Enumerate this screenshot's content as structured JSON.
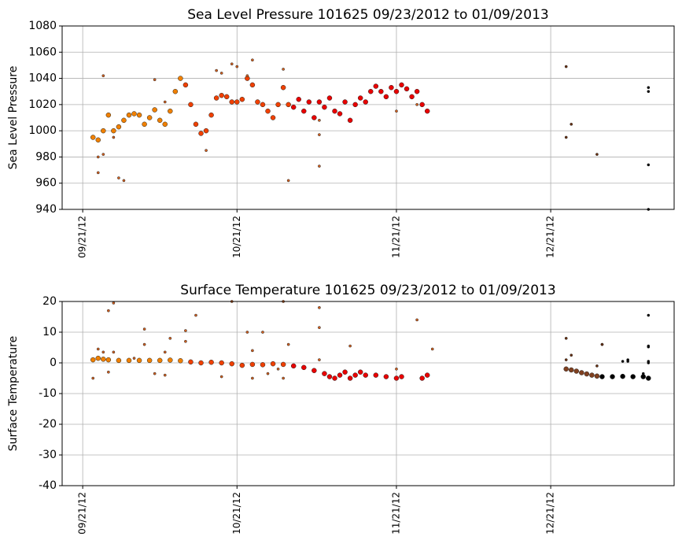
{
  "chart_data": [
    {
      "type": "scatter",
      "title": "Sea Level Pressure 101625  09/23/2012 to 01/09/2013",
      "y_label": "Sea Level Pressure",
      "xlim": [
        "2012-09-17",
        "2013-01-14"
      ],
      "ylim": [
        940,
        1080
      ],
      "xticks": [
        {
          "value": "2012-09-21",
          "label": "09/21/12"
        },
        {
          "value": "2012-10-21",
          "label": "10/21/12"
        },
        {
          "value": "2012-11-21",
          "label": "11/21/12"
        },
        {
          "value": "2012-12-21",
          "label": "12/21/12"
        }
      ],
      "yticks": [
        940,
        960,
        980,
        1000,
        1020,
        1040,
        1060,
        1080
      ],
      "grid": true,
      "series": [
        {
          "color": "#f08000",
          "marker_size": 3,
          "x": [
            "2012-09-23",
            "2012-09-24",
            "2012-09-25",
            "2012-09-26",
            "2012-09-27",
            "2012-09-28",
            "2012-09-29",
            "2012-09-30",
            "2012-10-01",
            "2012-10-02",
            "2012-10-03",
            "2012-10-04",
            "2012-10-05",
            "2012-10-06",
            "2012-10-07",
            "2012-10-08",
            "2012-10-09",
            "2012-10-10"
          ],
          "values": [
            995,
            993,
            1000,
            1012,
            1000,
            1003,
            1008,
            1012,
            1013,
            1012,
            1005,
            1010,
            1016,
            1008,
            1005,
            1015,
            1030,
            1040
          ]
        },
        {
          "color": "#f04000",
          "marker_size": 3,
          "x": [
            "2012-10-11",
            "2012-10-12",
            "2012-10-13",
            "2012-10-14",
            "2012-10-15",
            "2012-10-16",
            "2012-10-17",
            "2012-10-18",
            "2012-10-19",
            "2012-10-20",
            "2012-10-21",
            "2012-10-22",
            "2012-10-23",
            "2012-10-24",
            "2012-10-25",
            "2012-10-26",
            "2012-10-27",
            "2012-10-28",
            "2012-10-29",
            "2012-10-30",
            "2012-10-31"
          ],
          "values": [
            1035,
            1020,
            1005,
            998,
            1000,
            1012,
            1025,
            1027,
            1026,
            1022,
            1022,
            1024,
            1040,
            1035,
            1022,
            1020,
            1015,
            1010,
            1020,
            1033,
            1020
          ]
        },
        {
          "color": "#e80000",
          "marker_size": 3,
          "x": [
            "2012-11-01",
            "2012-11-02",
            "2012-11-03",
            "2012-11-04",
            "2012-11-05",
            "2012-11-06",
            "2012-11-07",
            "2012-11-08",
            "2012-11-09",
            "2012-11-10",
            "2012-11-11",
            "2012-11-12",
            "2012-11-13",
            "2012-11-14",
            "2012-11-15",
            "2012-11-16",
            "2012-11-17",
            "2012-11-18",
            "2012-11-19",
            "2012-11-20",
            "2012-11-21",
            "2012-11-22",
            "2012-11-23",
            "2012-11-24",
            "2012-11-25",
            "2012-11-26",
            "2012-11-27"
          ],
          "values": [
            1018,
            1024,
            1015,
            1022,
            1010,
            1022,
            1018,
            1025,
            1015,
            1013,
            1022,
            1008,
            1020,
            1025,
            1022,
            1030,
            1034,
            1030,
            1026,
            1033,
            1030,
            1035,
            1032,
            1026,
            1030,
            1020,
            1015
          ]
        },
        {
          "color": "#d06020",
          "marker_size": 1.6,
          "x": [
            "2012-09-24",
            "2012-09-24",
            "2012-09-25",
            "2012-09-25",
            "2012-09-27",
            "2012-09-28",
            "2012-09-29",
            "2012-10-05",
            "2012-10-07",
            "2012-10-15",
            "2012-10-17",
            "2012-10-18",
            "2012-10-20",
            "2012-10-21",
            "2012-10-23",
            "2012-10-24",
            "2012-10-30",
            "2012-10-31",
            "2012-11-06",
            "2012-11-06",
            "2012-11-06",
            "2012-11-21",
            "2012-11-25"
          ],
          "values": [
            968,
            980,
            982,
            1042,
            995,
            964,
            962,
            1039,
            1022,
            985,
            1046,
            1044,
            1051,
            1049,
            1042,
            1054,
            1047,
            962,
            997,
            1008,
            973,
            1015,
            1020
          ]
        },
        {
          "color": "#6a3010",
          "marker_size": 1.6,
          "x": [
            "2012-12-24",
            "2012-12-24",
            "2012-12-25",
            "2012-12-30"
          ],
          "values": [
            1049,
            995,
            1005,
            982
          ]
        },
        {
          "color": "#000000",
          "marker_size": 1.6,
          "x": [
            "2013-01-09",
            "2013-01-09",
            "2013-01-09",
            "2013-01-09"
          ],
          "values": [
            1033,
            1030,
            974,
            940
          ]
        }
      ]
    },
    {
      "type": "scatter",
      "title": "Surface Temperature 101625  09/23/2012 to 01/09/2013",
      "y_label": "Surface Temperature",
      "xlim": [
        "2012-09-17",
        "2013-01-14"
      ],
      "ylim": [
        -40,
        20
      ],
      "xticks": [
        {
          "value": "2012-09-21",
          "label": "09/21/12"
        },
        {
          "value": "2012-10-21",
          "label": "10/21/12"
        },
        {
          "value": "2012-11-21",
          "label": "11/21/12"
        },
        {
          "value": "2012-12-21",
          "label": "12/21/12"
        }
      ],
      "yticks": [
        -40,
        -30,
        -20,
        -10,
        0,
        10,
        20
      ],
      "grid": true,
      "series": [
        {
          "color": "#f08000",
          "marker_size": 3,
          "x": [
            "2012-09-23",
            "2012-09-24",
            "2012-09-25",
            "2012-09-26",
            "2012-09-28",
            "2012-09-30",
            "2012-10-02",
            "2012-10-04",
            "2012-10-06",
            "2012-10-08",
            "2012-10-10"
          ],
          "values": [
            1,
            1.5,
            1.2,
            1,
            0.8,
            0.8,
            0.8,
            0.8,
            0.8,
            0.9,
            0.7
          ]
        },
        {
          "color": "#f04000",
          "marker_size": 3,
          "x": [
            "2012-10-12",
            "2012-10-14",
            "2012-10-16",
            "2012-10-18",
            "2012-10-20",
            "2012-10-22",
            "2012-10-24",
            "2012-10-26",
            "2012-10-28",
            "2012-10-30"
          ],
          "values": [
            0.3,
            0,
            0.2,
            0,
            -0.3,
            -0.8,
            -0.5,
            -0.6,
            -0.3,
            -0.5
          ]
        },
        {
          "color": "#e80000",
          "marker_size": 3,
          "x": [
            "2012-11-01",
            "2012-11-03",
            "2012-11-05",
            "2012-11-07",
            "2012-11-08",
            "2012-11-09",
            "2012-11-10",
            "2012-11-11",
            "2012-11-12",
            "2012-11-13",
            "2012-11-14",
            "2012-11-15",
            "2012-11-17",
            "2012-11-19",
            "2012-11-21",
            "2012-11-22",
            "2012-11-26",
            "2012-11-27"
          ],
          "values": [
            -1,
            -1.5,
            -2.5,
            -3.5,
            -4.5,
            -5,
            -4,
            -3,
            -5,
            -4,
            -3,
            -4,
            -4,
            -4.5,
            -5,
            -4.5,
            -5,
            -4
          ]
        },
        {
          "color": "#804020",
          "marker_size": 3,
          "x": [
            "2012-12-24",
            "2012-12-25",
            "2012-12-26",
            "2012-12-27",
            "2012-12-28",
            "2012-12-29",
            "2012-12-30"
          ],
          "values": [
            -2,
            -2.3,
            -2.7,
            -3.2,
            -3.6,
            -4,
            -4.3
          ]
        },
        {
          "color": "#000000",
          "marker_size": 3,
          "x": [
            "2012-12-31",
            "2013-01-02",
            "2013-01-04",
            "2013-01-06",
            "2013-01-08",
            "2013-01-09"
          ],
          "values": [
            -4.5,
            -4.5,
            -4.4,
            -4.5,
            -4.5,
            -5
          ]
        },
        {
          "color": "#d06020",
          "marker_size": 1.6,
          "x": [
            "2012-09-23",
            "2012-09-24",
            "2012-09-25",
            "2012-09-26",
            "2012-09-27",
            "2012-09-27",
            "2012-09-26",
            "2012-10-01",
            "2012-10-03",
            "2012-10-03",
            "2012-10-05",
            "2012-10-07",
            "2012-10-07",
            "2012-10-08",
            "2012-10-11",
            "2012-10-11",
            "2012-10-13",
            "2012-10-18",
            "2012-10-20",
            "2012-10-23",
            "2012-10-24",
            "2012-10-24",
            "2012-10-26",
            "2012-10-27",
            "2012-10-29",
            "2012-10-30",
            "2012-10-30",
            "2012-10-31",
            "2012-11-06",
            "2012-11-06",
            "2012-11-06",
            "2012-11-12",
            "2012-11-21",
            "2012-11-25",
            "2012-11-28"
          ],
          "values": [
            -5,
            4.5,
            3.5,
            17,
            19.5,
            3.5,
            -3,
            1.5,
            6,
            11,
            -3.5,
            -4,
            3.5,
            8,
            7,
            10.5,
            15.5,
            -4.5,
            20,
            10,
            -5,
            4,
            10,
            -3.5,
            -2,
            -5,
            20,
            6,
            18,
            11.5,
            1,
            5.5,
            -2,
            14,
            4.5
          ]
        },
        {
          "color": "#6a3010",
          "marker_size": 1.6,
          "x": [
            "2012-12-24",
            "2012-12-24",
            "2012-12-25",
            "2012-12-30",
            "2012-12-31",
            "2012-12-31"
          ],
          "values": [
            8,
            1,
            2.5,
            -1,
            6,
            6
          ]
        },
        {
          "color": "#000000",
          "marker_size": 1.6,
          "x": [
            "2013-01-04",
            "2013-01-05",
            "2013-01-05",
            "2013-01-09",
            "2013-01-09",
            "2013-01-09",
            "2013-01-09",
            "2013-01-09",
            "2013-01-08"
          ],
          "values": [
            0.5,
            0.5,
            1,
            5.5,
            15.5,
            5.2,
            0.5,
            0,
            -3.5
          ]
        }
      ]
    }
  ]
}
